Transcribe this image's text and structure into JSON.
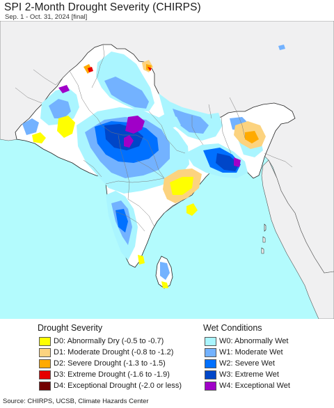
{
  "header": {
    "title": "SPI 2-Month Drought Severity (CHIRPS)",
    "subtitle": "Sep. 1 - Oct. 31, 2024 [final]"
  },
  "colors": {
    "ocean": "#b3fbfd",
    "land": "#ffffff",
    "outside_land": "#f0f0f1",
    "boundary": "#7a7a7a",
    "coast": "#222222"
  },
  "legend": {
    "drought": {
      "heading": "Drought Severity",
      "items": [
        {
          "code": "D0",
          "label": "D0: Abnormally Dry (-0.5 to -0.7)",
          "color": "#ffff00"
        },
        {
          "code": "D1",
          "label": "D1: Moderate Drought (-0.8 to -1.2)",
          "color": "#fcd37f"
        },
        {
          "code": "D2",
          "label": "D2: Severe Drought (-1.3 to -1.5)",
          "color": "#ffaa00"
        },
        {
          "code": "D3",
          "label": "D3: Extreme Drought (-1.6 to -1.9)",
          "color": "#e60000"
        },
        {
          "code": "D4",
          "label": "D4: Exceptional Drought (-2.0 or less)",
          "color": "#730000"
        }
      ]
    },
    "wet": {
      "heading": "Wet Conditions",
      "items": [
        {
          "code": "W0",
          "label": "W0: Abnormally Wet",
          "color": "#aaf5ff"
        },
        {
          "code": "W1",
          "label": "W1: Moderate Wet",
          "color": "#73b2ff"
        },
        {
          "code": "W2",
          "label": "W2: Severe Wet",
          "color": "#0070ff"
        },
        {
          "code": "W3",
          "label": "W3: Extreme Wet",
          "color": "#0046c8"
        },
        {
          "code": "W4",
          "label": "W4: Exceptional Wet",
          "color": "#a000c8"
        }
      ]
    }
  },
  "footer": {
    "source": "Source: CHIRPS, UCSB, Climate Hazards Center"
  }
}
